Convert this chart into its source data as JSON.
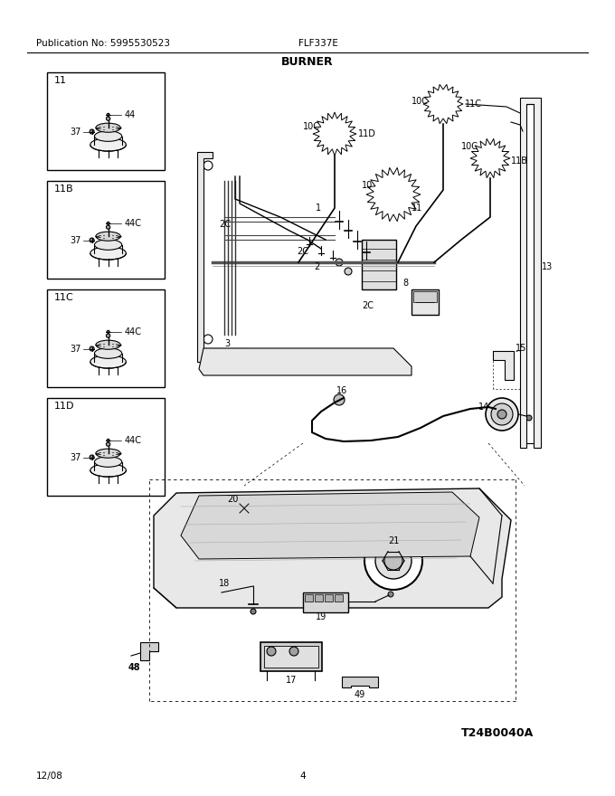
{
  "title": "BURNER",
  "pub_no": "Publication No: 5995530523",
  "model": "FLF337E",
  "date": "12/08",
  "page": "4",
  "watermark": "T24B0040A",
  "bg_color": "#ffffff",
  "fig_width": 6.8,
  "fig_height": 8.8,
  "dpi": 100
}
